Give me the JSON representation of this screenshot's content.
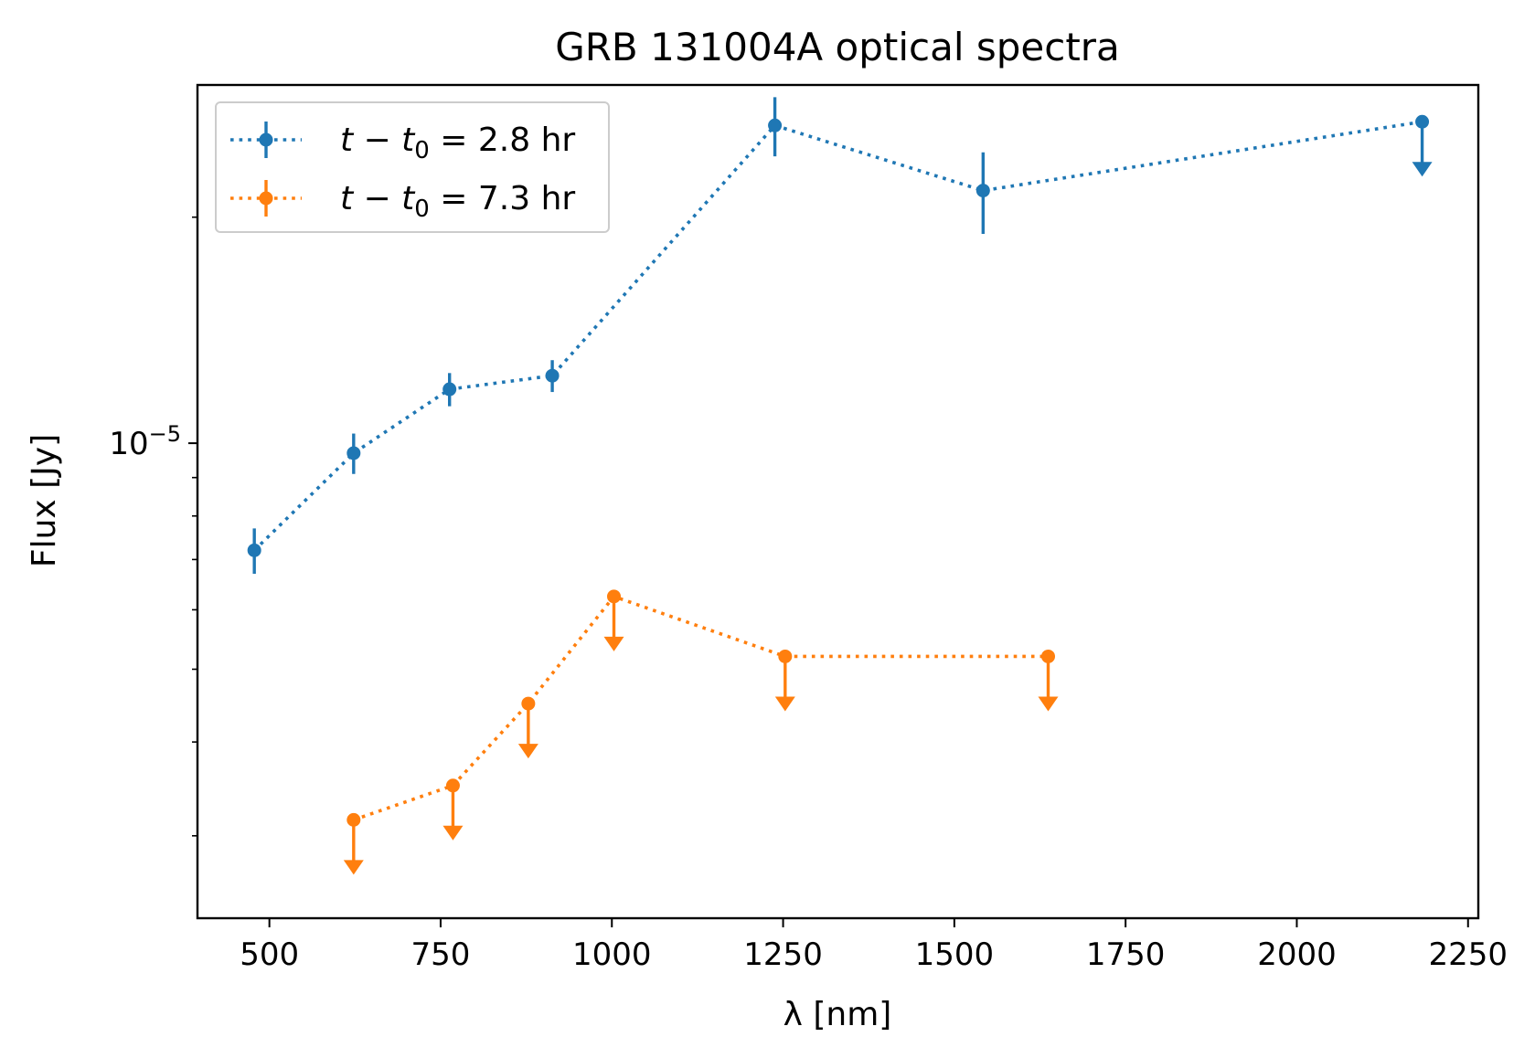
{
  "chart_data": {
    "type": "scatter",
    "title": "GRB 131004A optical spectra",
    "xlabel": "λ [nm]",
    "ylabel": "Flux [Jy]",
    "xlim": [
      395,
      2265
    ],
    "ylim": [
      2.33e-06,
      3e-05
    ],
    "y_scale": "log",
    "x_ticks": [
      500,
      750,
      1000,
      1250,
      1500,
      1750,
      2000,
      2250
    ],
    "x_tick_labels": [
      "500",
      "750",
      "1000",
      "1250",
      "1500",
      "1750",
      "2000",
      "2250"
    ],
    "y_tick_label": {
      "base": "10",
      "exponent": "−5",
      "value": 1e-05
    },
    "legend_position": "upper left",
    "grid": false,
    "series": [
      {
        "name_prefix": "t − t",
        "name_subscript": "0",
        "name_suffix": " = 2.8 hr",
        "color": "#1f77b4",
        "line_style": "dotted",
        "points": [
          {
            "x": 478,
            "y": 7.2e-06,
            "err": 5e-07,
            "upper_limit": false
          },
          {
            "x": 623,
            "y": 9.7e-06,
            "err": 6e-07,
            "upper_limit": false
          },
          {
            "x": 763,
            "y": 1.18e-05,
            "err": 6e-07,
            "upper_limit": false
          },
          {
            "x": 913,
            "y": 1.23e-05,
            "err": 6e-07,
            "upper_limit": false
          },
          {
            "x": 1238,
            "y": 2.65e-05,
            "err": 2.4e-06,
            "upper_limit": false
          },
          {
            "x": 1542,
            "y": 2.17e-05,
            "err": 2.7e-06,
            "upper_limit": false
          },
          {
            "x": 2183,
            "y": 2.68e-05,
            "upper_limit": true
          }
        ]
      },
      {
        "name_prefix": "t − t",
        "name_subscript": "0",
        "name_suffix": " = 7.3 hr",
        "color": "#ff7f0e",
        "line_style": "dotted",
        "points": [
          {
            "x": 623,
            "y": 3.15e-06,
            "upper_limit": true
          },
          {
            "x": 768,
            "y": 3.5e-06,
            "upper_limit": true
          },
          {
            "x": 878,
            "y": 4.5e-06,
            "upper_limit": true
          },
          {
            "x": 1003,
            "y": 6.25e-06,
            "upper_limit": true
          },
          {
            "x": 1253,
            "y": 5.2e-06,
            "upper_limit": true
          },
          {
            "x": 1637,
            "y": 5.2e-06,
            "upper_limit": true
          }
        ]
      }
    ]
  }
}
